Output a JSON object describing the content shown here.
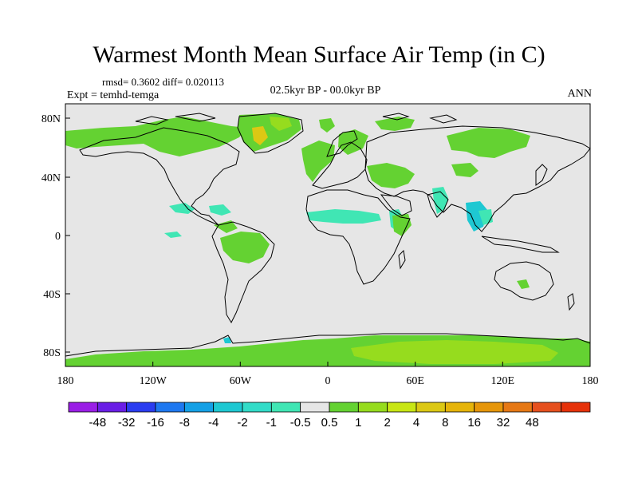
{
  "title": "Warmest Month Mean Surface Air Temp (in C)",
  "stats": "rmsd= 0.3602 diff= 0.020113",
  "experiment": "Expt = temhd-temga",
  "period": "02.5kyr BP - 00.0kyr BP",
  "season": "ANN",
  "axes": {
    "lon_labels": [
      "180",
      "120W",
      "60W",
      "0",
      "60E",
      "120E",
      "180"
    ],
    "lat_labels": [
      "80N",
      "40N",
      "0",
      "40S",
      "80S"
    ]
  },
  "colorbar": {
    "colors": [
      "#9a1ee6",
      "#6a1ee6",
      "#2a3cf0",
      "#1e78f0",
      "#14a0e6",
      "#1ec8d2",
      "#32dcc8",
      "#40e6b4",
      "#e6e6e6",
      "#64d232",
      "#96dc1e",
      "#c8e614",
      "#dcc814",
      "#e6b40a",
      "#e6960a",
      "#e67814",
      "#e6501e",
      "#e6320a"
    ],
    "labels": [
      "-48",
      "-32",
      "-16",
      "-8",
      "-4",
      "-2",
      "-1",
      "-0.5",
      "0.5",
      "1",
      "2",
      "4",
      "8",
      "16",
      "32",
      "48"
    ]
  },
  "field_colors": {
    "neutral": "#e6e6e6",
    "pos_small": "#64d232",
    "pos_medium": "#96dc1e",
    "pos_large": "#dcc814",
    "neg_small": "#40e6b4",
    "neg_medium": "#1ec8d2"
  }
}
